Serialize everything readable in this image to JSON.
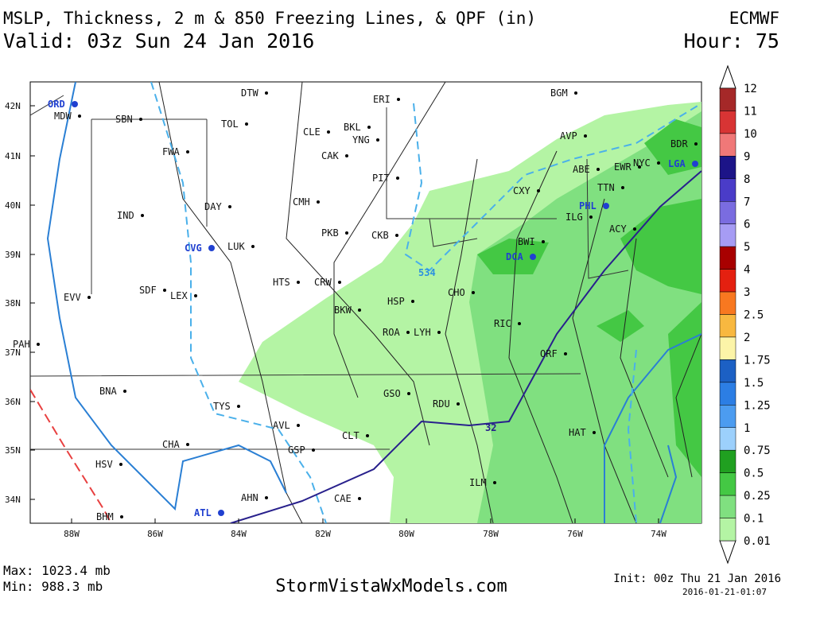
{
  "header": {
    "title": "MSLP, Thickness, 2 m & 850 Freezing Lines, & QPF (in)",
    "valid": "Valid: 03z Sun 24 Jan 2016",
    "model": "ECMWF",
    "hour": "Hour: 75"
  },
  "map": {
    "lat_labels": [
      "42N",
      "41N",
      "40N",
      "39N",
      "38N",
      "37N",
      "36N",
      "35N",
      "34N"
    ],
    "lon_labels": [
      "88W",
      "86W",
      "84W",
      "82W",
      "80W",
      "78W",
      "76W",
      "74W"
    ],
    "cities": [
      "MDW",
      "SBN",
      "TOL",
      "DTW",
      "ERI",
      "BGM",
      "CLE",
      "BKL",
      "YNG",
      "CAK",
      "AVP",
      "BDR",
      "NYC",
      "EWR",
      "ABE",
      "TTN",
      "CXY",
      "ILG",
      "ACY",
      "FWA",
      "PIT",
      "DAY",
      "CMH",
      "IND",
      "PKB",
      "CKB",
      "LUK",
      "BWI",
      "HTS",
      "CRW",
      "SDF",
      "LEX",
      "EVV",
      "CHO",
      "HSP",
      "BKW",
      "RIC",
      "ROA",
      "LYH",
      "PAH",
      "ORF",
      "BNA",
      "GSO",
      "RDU",
      "TYS",
      "AVL",
      "HAT",
      "CLT",
      "CHA",
      "GSP",
      "HSV",
      "ILM",
      "AHN",
      "CAE",
      "BHM"
    ],
    "major_airports": [
      "ORD",
      "LGA",
      "PHL",
      "CVG",
      "DCA",
      "ATL"
    ],
    "contour_labels": [
      "534",
      "32"
    ]
  },
  "colorbar": {
    "labels": [
      "12",
      "11",
      "10",
      "9",
      "8",
      "7",
      "6",
      "5",
      "4",
      "3",
      "2.5",
      "2",
      "1.75",
      "1.5",
      "1.25",
      "1",
      "0.75",
      "0.5",
      "0.25",
      "0.1",
      "0.01"
    ],
    "colors": [
      "#a52828",
      "#d83434",
      "#f07878",
      "#1c1488",
      "#4a3cc8",
      "#7a6ce0",
      "#a69cf4",
      "#a80000",
      "#e42010",
      "#f87820",
      "#f8b840",
      "#fcf4a8",
      "#1c60c4",
      "#2c7ee4",
      "#4c9cf0",
      "#9cd0fc",
      "#20a020",
      "#44c844",
      "#80e080",
      "#b4f4a4"
    ]
  },
  "footer": {
    "max": "Max: 1023.4 mb",
    "min": "Min: 988.3 mb",
    "site": "StormVistaWxModels.com",
    "init": "Init: 00z Thu 21 Jan 2016",
    "stamp": "2016-01-21-01:07"
  }
}
